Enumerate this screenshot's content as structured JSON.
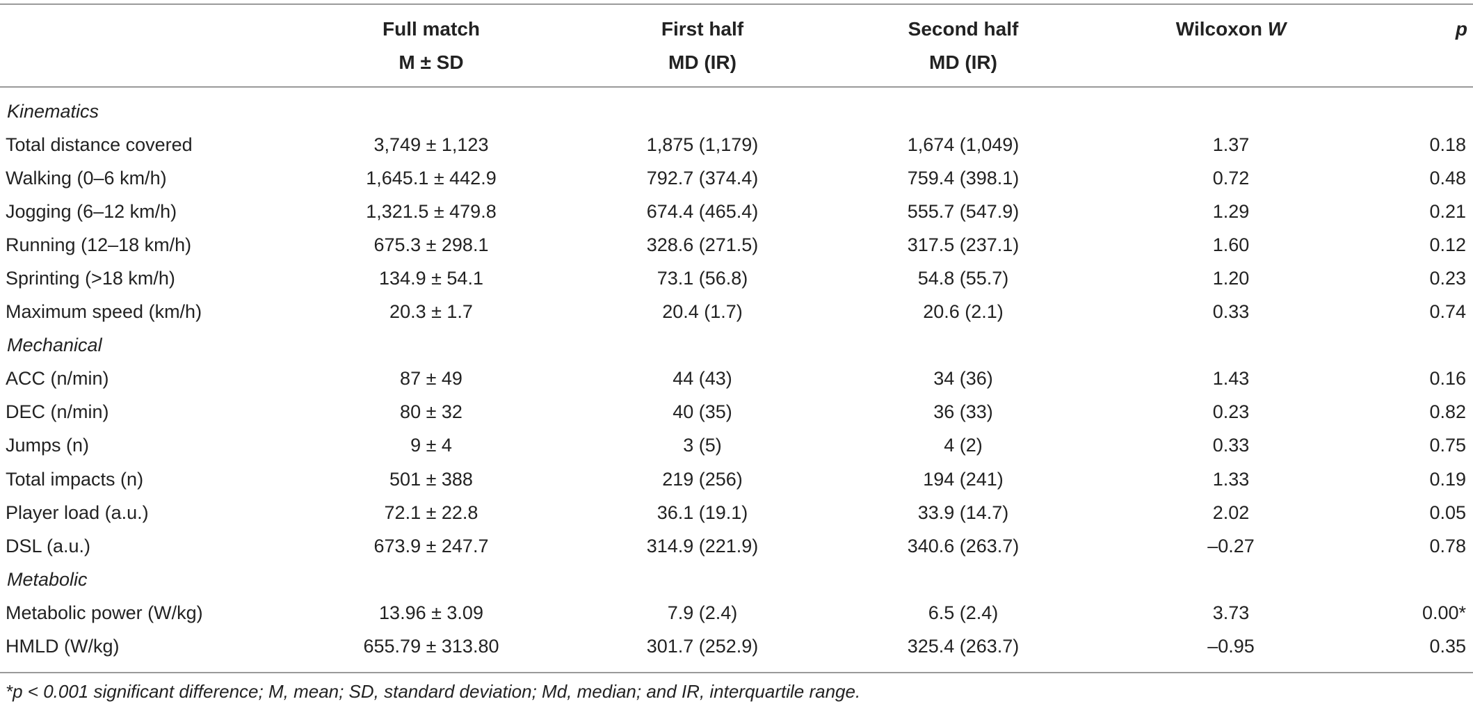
{
  "header": {
    "full_match": "Full match",
    "full_match_sub": "M ± SD",
    "first_half": "First half",
    "first_half_sub": "MD (IR)",
    "second_half": "Second half",
    "second_half_sub": "MD (IR)",
    "wilcoxon": "Wilcoxon ",
    "wilcoxon_w": "W",
    "p": "p"
  },
  "rows": [
    {
      "section": true,
      "label": "Kinematics"
    },
    {
      "label": "Total distance covered",
      "full": "3,749 ± 1,123",
      "first": "1,875 (1,179)",
      "second": "1,674 (1,049)",
      "w": "1.37",
      "p": "0.18"
    },
    {
      "label": "Walking (0–6 km/h)",
      "full": "1,645.1 ± 442.9",
      "first": "792.7 (374.4)",
      "second": "759.4 (398.1)",
      "w": "0.72",
      "p": "0.48"
    },
    {
      "label": "Jogging (6–12 km/h)",
      "full": "1,321.5 ± 479.8",
      "first": "674.4 (465.4)",
      "second": "555.7 (547.9)",
      "w": "1.29",
      "p": "0.21"
    },
    {
      "label": "Running (12–18 km/h)",
      "full": "675.3 ± 298.1",
      "first": "328.6 (271.5)",
      "second": "317.5 (237.1)",
      "w": "1.60",
      "p": "0.12"
    },
    {
      "label": "Sprinting (>18 km/h)",
      "full": "134.9 ± 54.1",
      "first": "73.1 (56.8)",
      "second": "54.8 (55.7)",
      "w": "1.20",
      "p": "0.23"
    },
    {
      "label": "Maximum speed (km/h)",
      "full": "20.3 ± 1.7",
      "first": "20.4 (1.7)",
      "second": "20.6 (2.1)",
      "w": "0.33",
      "p": "0.74"
    },
    {
      "section": true,
      "label": "Mechanical"
    },
    {
      "label": "ACC (n/min)",
      "full": "87 ± 49",
      "first": "44 (43)",
      "second": "34 (36)",
      "w": "1.43",
      "p": "0.16"
    },
    {
      "label": "DEC (n/min)",
      "full": "80 ± 32",
      "first": "40 (35)",
      "second": "36 (33)",
      "w": "0.23",
      "p": "0.82"
    },
    {
      "label": "Jumps (n)",
      "full": "9 ± 4",
      "first": "3 (5)",
      "second": "4 (2)",
      "w": "0.33",
      "p": "0.75"
    },
    {
      "label": "Total impacts (n)",
      "full": "501 ± 388",
      "first": "219 (256)",
      "second": "194 (241)",
      "w": "1.33",
      "p": "0.19"
    },
    {
      "label": "Player load (a.u.)",
      "full": "72.1 ± 22.8",
      "first": "36.1 (19.1)",
      "second": "33.9 (14.7)",
      "w": "2.02",
      "p": "0.05"
    },
    {
      "label": "DSL (a.u.)",
      "full": "673.9 ± 247.7",
      "first": "314.9 (221.9)",
      "second": "340.6 (263.7)",
      "w": "–0.27",
      "p": "0.78"
    },
    {
      "section": true,
      "label": "Metabolic"
    },
    {
      "label": "Metabolic power (W/kg)",
      "full": "13.96 ± 3.09",
      "first": "7.9 (2.4)",
      "second": "6.5 (2.4)",
      "w": "3.73",
      "p": "0.00*"
    },
    {
      "label": "HMLD (W/kg)",
      "full": "655.79 ± 313.80",
      "first": "301.7 (252.9)",
      "second": "325.4 (263.7)",
      "w": "–0.95",
      "p": "0.35"
    }
  ],
  "footnote": "*p < 0.001 significant difference; M, mean; SD, standard deviation; Md, median; and IR, interquartile range."
}
